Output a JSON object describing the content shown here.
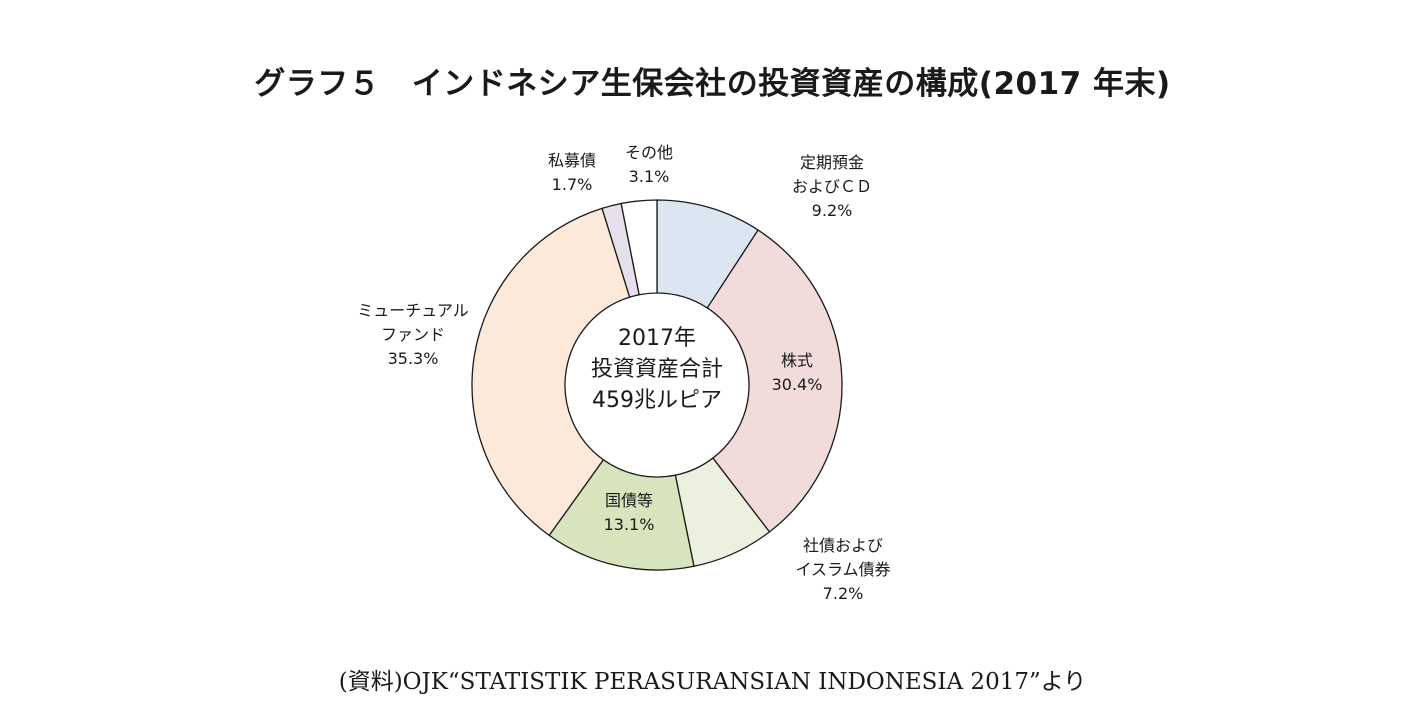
{
  "chart_data": {
    "type": "pie",
    "title": "グラフ５　インドネシア生保会社の投資資産の構成(2017 年末)",
    "center_label": [
      "2017年",
      "投資資産合計",
      "459兆ルピア"
    ],
    "slices": [
      {
        "label_lines": [
          "定期預金",
          "およびＣＤ"
        ],
        "value": 9.2,
        "value_label": "9.2%",
        "color": "#dce6f2"
      },
      {
        "label_lines": [
          "株式"
        ],
        "value": 30.4,
        "value_label": "30.4%",
        "color": "#f2dcdb"
      },
      {
        "label_lines": [
          "社債および",
          "イスラム債券"
        ],
        "value": 7.2,
        "value_label": "7.2%",
        "color": "#ebf1de"
      },
      {
        "label_lines": [
          "国債等"
        ],
        "value": 13.1,
        "value_label": "13.1%",
        "color": "#d7e4bd"
      },
      {
        "label_lines": [
          "ミューチュアル",
          "ファンド"
        ],
        "value": 35.3,
        "value_label": "35.3%",
        "color": "#fde9d9"
      },
      {
        "label_lines": [
          "私募債"
        ],
        "value": 1.7,
        "value_label": "1.7%",
        "color": "#e6e0ec"
      },
      {
        "label_lines": [
          "その他"
        ],
        "value": 3.1,
        "value_label": "3.1%",
        "color": "#ffffff"
      }
    ]
  },
  "source": "(資料)OJK“STATISTIK PERASURANSIAN INDONESIA 2017”より"
}
